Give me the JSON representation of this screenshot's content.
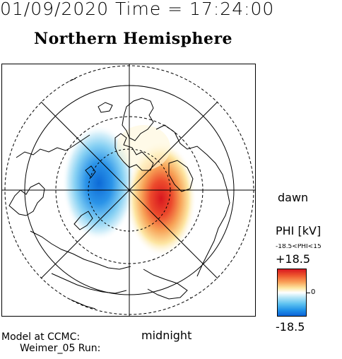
{
  "header": {
    "datetime": "01/09/2020 Time = 17:24:00",
    "title": "Northern Hemisphere"
  },
  "labels": {
    "dawn": "dawn",
    "midnight": "midnight"
  },
  "footer": {
    "line1": "Model at CCMC:",
    "line2": "Weimer_05 Run:"
  },
  "colorbar": {
    "title": "PHI [kV]",
    "range_text": "-18.5<PHI<15",
    "max_label": "+18.5",
    "zero_label": "0",
    "min_label": "-18.5",
    "colors": {
      "positive": "#d8171f",
      "mid": "#ffffff",
      "negative": "#0b63d6"
    }
  },
  "map": {
    "projection": "north-polar",
    "latitude_circles": [
      50,
      60,
      70,
      80
    ],
    "longitude_lines_count": 8,
    "features": [
      "coastlines",
      "potential-contours"
    ]
  }
}
